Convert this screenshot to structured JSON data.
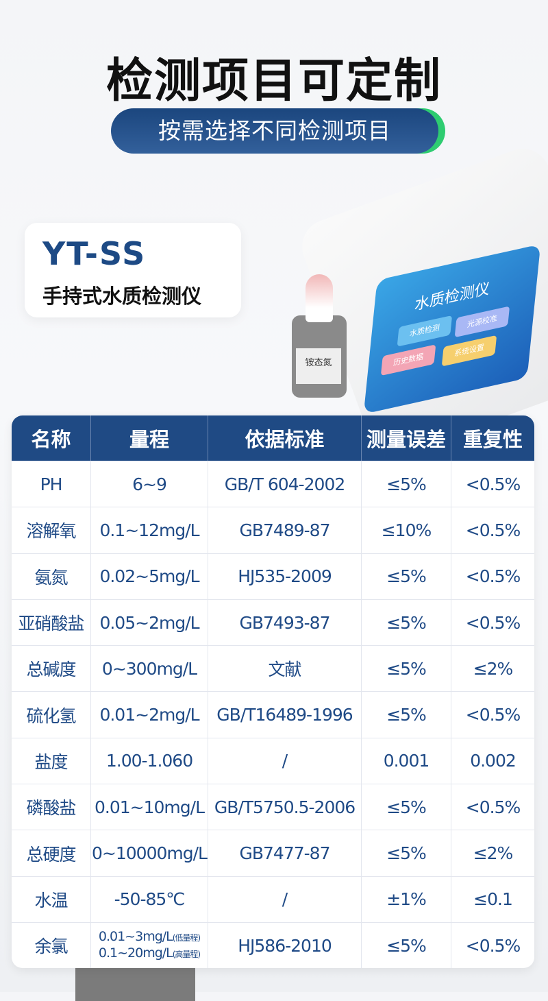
{
  "title": "检测项目可定制",
  "subtitle": "按需选择不同检测项目",
  "product": {
    "model": "YT-SS",
    "name": "手持式水质检测仪"
  },
  "device_screen": {
    "title": "水质检测仪",
    "buttons": [
      "水质检测",
      "历史数据",
      "光源校准",
      "系统设置"
    ],
    "bottle_label": "铵态氮"
  },
  "colors": {
    "primary": "#1f4a84",
    "accent": "#2ecc71"
  },
  "table": {
    "headers": [
      "名称",
      "量程",
      "依据标准",
      "测量误差",
      "重复性"
    ],
    "rows": [
      [
        "PH",
        "6~9",
        "GB/T 604-2002",
        "≤5%",
        "<0.5%"
      ],
      [
        "溶解氧",
        "0.1~12mg/L",
        "GB7489-87",
        "≤10%",
        "<0.5%"
      ],
      [
        "氨氮",
        "0.02~5mg/L",
        "HJ535-2009",
        "≤5%",
        "<0.5%"
      ],
      [
        "亚硝酸盐",
        "0.05~2mg/L",
        "GB7493-87",
        "≤5%",
        "<0.5%"
      ],
      [
        "总碱度",
        "0~300mg/L",
        "文献",
        "≤5%",
        "≤2%"
      ],
      [
        "硫化氢",
        "0.01~2mg/L",
        "GB/T16489-1996",
        "≤5%",
        "<0.5%"
      ],
      [
        "盐度",
        "1.00-1.060",
        "/",
        "0.001",
        "0.002"
      ],
      [
        "磷酸盐",
        "0.01~10mg/L",
        "GB/T5750.5-2006",
        "≤5%",
        "<0.5%"
      ],
      [
        "总硬度",
        "0~10000mg/L",
        "GB7477-87",
        "≤5%",
        "≤2%"
      ],
      [
        "水温",
        "-50-85℃",
        "/",
        "±1%",
        "≤0.1"
      ]
    ],
    "last_row": {
      "name": "余氯",
      "range_low": "0.01~3mg/L",
      "range_low_note": "(低量程)",
      "range_high": "0.1~20mg/L",
      "range_high_note": "(高量程)",
      "standard": "HJ586-2010",
      "error": "≤5%",
      "repeat": "<0.5%"
    }
  }
}
